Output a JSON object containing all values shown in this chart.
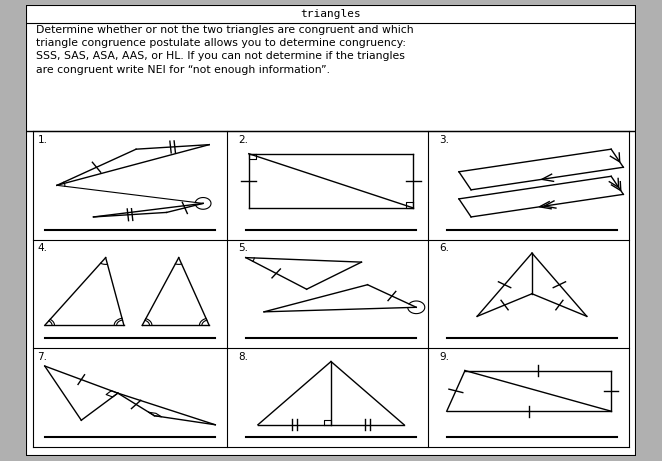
{
  "title": "triangles",
  "instructions": "Determine whether or not the two triangles are congruent and which\ntriangle congruence postulate allows you to determine congruency:\nSSS, SAS, ASA, AAS, or HL. If you can not determine if the triangles\nare congruent write NEI for “not enough information”.",
  "bg_color": "#ffffff",
  "outer_bg": "#b0b0b0",
  "grid_color": "#000000",
  "cell_labels": [
    "1.",
    "2.",
    "3.",
    "4.",
    "5.",
    "6.",
    "7.",
    "8.",
    "9."
  ]
}
